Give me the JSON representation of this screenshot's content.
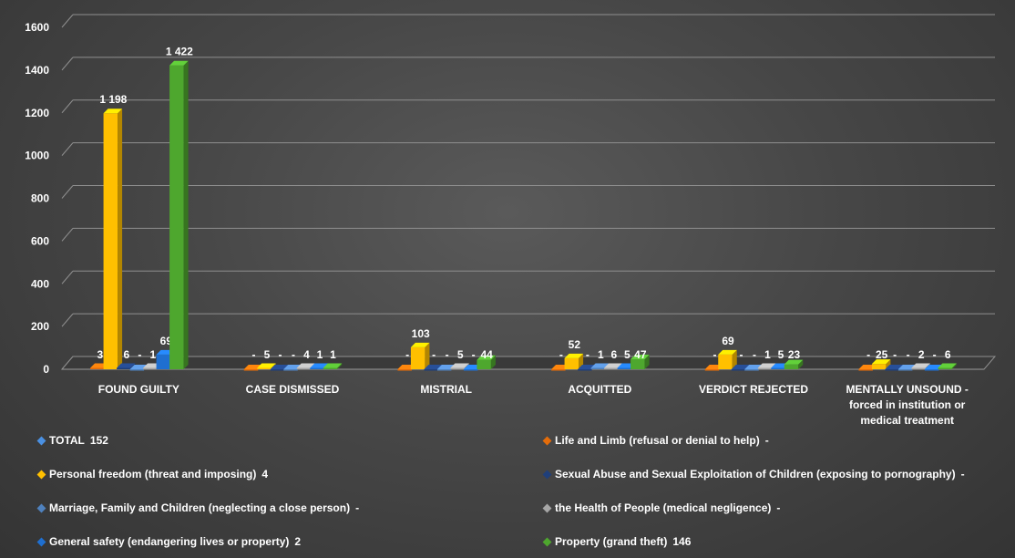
{
  "chart_data": {
    "type": "bar",
    "categories": [
      "FOUND GUILTY",
      "CASE DISMISSED",
      "MISTRIAL",
      "ACQUITTED",
      "VERDICT REJECTED",
      "MENTALLY UNSOUND - forced in institution or medical treatment"
    ],
    "category_lines": [
      [
        "FOUND GUILTY"
      ],
      [
        "CASE DISMISSED"
      ],
      [
        "MISTRIAL"
      ],
      [
        "ACQUITTED"
      ],
      [
        "VERDICT REJECTED"
      ],
      [
        "MENTALLY UNSOUND -",
        "forced in institution or",
        "medical treatment"
      ]
    ],
    "yticks": [
      "0",
      "200",
      "400",
      "600",
      "800",
      "1000",
      "1200",
      "1400",
      "1600"
    ],
    "ylim": [
      0,
      1600
    ],
    "grid": true,
    "legend_position": "bottom",
    "series": [
      {
        "name": "Life and Limb (refusal or denial to help)",
        "legend_value": "-",
        "color": "#e46c0a",
        "values": [
          3,
          null,
          null,
          null,
          null,
          null
        ],
        "labels": [
          "3",
          "-",
          "-",
          "-",
          "-",
          "-"
        ]
      },
      {
        "name": "Personal freedom (threat and imposing)",
        "legend_value": "4",
        "color": "#ffc000",
        "values": [
          1198,
          5,
          103,
          52,
          69,
          25
        ],
        "labels": [
          "1 198",
          "5",
          "103",
          "52",
          "69",
          "25"
        ]
      },
      {
        "name": "Sexual Abuse and Sexual Exploitation of Children (exposing to pornography)",
        "legend_value": "-",
        "color": "#1f3f7a",
        "values": [
          6,
          null,
          null,
          null,
          null,
          null
        ],
        "labels": [
          "6",
          "-",
          "-",
          "-",
          "-",
          "-"
        ]
      },
      {
        "name": "Marriage, Family and Children (neglecting a close person)",
        "legend_value": "-",
        "color": "#4f81bd",
        "values": [
          null,
          null,
          null,
          1,
          null,
          null
        ],
        "labels": [
          "-",
          "-",
          "-",
          "1",
          "-",
          "-"
        ]
      },
      {
        "name": "the Health of People (medical negligence)",
        "legend_value": "-",
        "color": "#a6a6a6",
        "values": [
          1,
          4,
          5,
          6,
          1,
          2
        ],
        "labels": [
          "1",
          "4",
          "5",
          "6",
          "1",
          "2"
        ]
      },
      {
        "name": "General safety (endangering lives or property)",
        "legend_value": "2",
        "color": "#1f6fd0",
        "values": [
          69,
          1,
          null,
          5,
          5,
          null
        ],
        "labels": [
          "69",
          "1",
          "-",
          "5",
          "5",
          "-"
        ]
      },
      {
        "name": "Property (grand theft)",
        "legend_value": "146",
        "color": "#4ea72e",
        "values": [
          1422,
          1,
          44,
          47,
          23,
          6
        ],
        "labels": [
          "1 422",
          "1",
          "44",
          "47",
          "23",
          "6"
        ]
      }
    ],
    "legend_only": [
      {
        "name": "TOTAL",
        "legend_value": "152",
        "color": "#4a90e2"
      }
    ]
  }
}
